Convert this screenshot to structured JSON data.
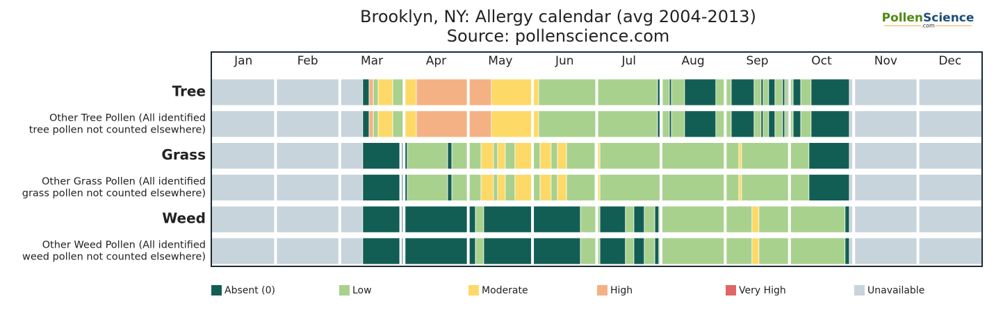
{
  "chart_data": {
    "type": "calendar",
    "title": [
      "Brooklyn, NY: Allergy calendar (avg 2004-2013)",
      "Source: pollenscience.com"
    ],
    "logo": [
      "Pollen",
      "Science",
      ".com"
    ],
    "categories": [
      "Jan",
      "Feb",
      "Mar",
      "Apr",
      "May",
      "Jun",
      "Jul",
      "Aug",
      "Sep",
      "Oct",
      "Nov",
      "Dec"
    ],
    "xlim": [
      0,
      365
    ],
    "levels": [
      {
        "name": "Absent (0)",
        "color": "#135e54"
      },
      {
        "name": "Low",
        "color": "#a9d18e"
      },
      {
        "name": "Moderate",
        "color": "#fdd967"
      },
      {
        "name": "High",
        "color": "#f4b183"
      },
      {
        "name": "Very High",
        "color": "#e06666"
      },
      {
        "name": "Unavailable",
        "color": "#c8d4dc"
      }
    ],
    "rows": [
      {
        "label": [
          "Tree"
        ],
        "bold": true,
        "segments": [
          [
            0,
            71.7,
            5
          ],
          [
            71.7,
            74.7,
            0
          ],
          [
            74.7,
            76.7,
            3
          ],
          [
            76.7,
            79.0,
            1
          ],
          [
            79.0,
            85.9,
            2
          ],
          [
            85.9,
            90.8,
            1
          ],
          [
            90.8,
            97.1,
            2
          ],
          [
            97.1,
            132.6,
            3
          ],
          [
            132.6,
            155.0,
            2
          ],
          [
            155.0,
            211.3,
            1
          ],
          [
            211.3,
            213.6,
            0
          ],
          [
            213.6,
            216.9,
            1
          ],
          [
            216.9,
            217.9,
            0
          ],
          [
            217.9,
            224.1,
            1
          ],
          [
            224.1,
            238.9,
            0
          ],
          [
            238.9,
            246.2,
            1
          ],
          [
            246.2,
            257.0,
            0
          ],
          [
            257.0,
            260.3,
            1
          ],
          [
            260.3,
            261.3,
            0
          ],
          [
            261.3,
            263.9,
            1
          ],
          [
            263.9,
            266.9,
            0
          ],
          [
            266.9,
            270.5,
            1
          ],
          [
            270.5,
            271.5,
            0
          ],
          [
            271.5,
            272.8,
            1
          ],
          [
            272.8,
            273.8,
            0
          ],
          [
            273.8,
            275.5,
            1
          ],
          [
            275.5,
            279.1,
            0
          ],
          [
            279.1,
            284.0,
            1
          ],
          [
            284.0,
            302.1,
            0
          ],
          [
            302.1,
            365,
            5
          ]
        ]
      },
      {
        "label": [
          "Other Tree Pollen (All identified",
          "tree pollen not counted elsewhere)"
        ],
        "bold": false,
        "segments": [
          [
            0,
            71.7,
            5
          ],
          [
            71.7,
            74.7,
            0
          ],
          [
            74.7,
            76.7,
            3
          ],
          [
            76.7,
            79.0,
            1
          ],
          [
            79.0,
            85.9,
            2
          ],
          [
            85.9,
            90.8,
            1
          ],
          [
            90.8,
            97.1,
            2
          ],
          [
            97.1,
            132.6,
            3
          ],
          [
            132.6,
            155.0,
            2
          ],
          [
            155.0,
            211.3,
            1
          ],
          [
            211.3,
            213.6,
            0
          ],
          [
            213.6,
            216.9,
            1
          ],
          [
            216.9,
            217.9,
            0
          ],
          [
            217.9,
            224.1,
            1
          ],
          [
            224.1,
            238.9,
            0
          ],
          [
            238.9,
            246.2,
            1
          ],
          [
            246.2,
            257.0,
            0
          ],
          [
            257.0,
            260.3,
            1
          ],
          [
            260.3,
            261.3,
            0
          ],
          [
            261.3,
            263.9,
            1
          ],
          [
            263.9,
            266.9,
            0
          ],
          [
            266.9,
            270.5,
            1
          ],
          [
            270.5,
            271.5,
            0
          ],
          [
            271.5,
            272.8,
            1
          ],
          [
            272.8,
            273.8,
            0
          ],
          [
            273.8,
            275.5,
            1
          ],
          [
            275.5,
            279.1,
            0
          ],
          [
            279.1,
            284.0,
            1
          ],
          [
            284.0,
            302.1,
            0
          ],
          [
            302.1,
            365,
            5
          ]
        ]
      },
      {
        "label": [
          "Grass"
        ],
        "bold": true,
        "segments": [
          [
            0,
            71.7,
            5
          ],
          [
            71.7,
            89.2,
            0
          ],
          [
            90.2,
            92.8,
            0
          ],
          [
            92.8,
            111.9,
            1
          ],
          [
            111.9,
            113.9,
            0
          ],
          [
            113.9,
            127.7,
            1
          ],
          [
            127.7,
            133.6,
            2
          ],
          [
            133.6,
            135.6,
            1
          ],
          [
            135.6,
            139.2,
            2
          ],
          [
            139.2,
            143.8,
            1
          ],
          [
            143.8,
            151.7,
            2
          ],
          [
            151.7,
            155.7,
            1
          ],
          [
            155.7,
            160.9,
            2
          ],
          [
            160.9,
            163.9,
            1
          ],
          [
            163.9,
            168.2,
            2
          ],
          [
            168.2,
            181.7,
            1
          ],
          [
            181.7,
            184.0,
            2
          ],
          [
            184.0,
            249.8,
            1
          ],
          [
            249.8,
            251.1,
            2
          ],
          [
            251.1,
            283.0,
            1
          ],
          [
            283.0,
            302.1,
            0
          ],
          [
            302.1,
            365,
            5
          ]
        ]
      },
      {
        "label": [
          "Other Grass Pollen (All identified",
          "grass pollen not counted elsewhere)"
        ],
        "bold": false,
        "segments": [
          [
            0,
            71.7,
            5
          ],
          [
            71.7,
            89.2,
            0
          ],
          [
            90.2,
            92.8,
            0
          ],
          [
            92.8,
            111.9,
            1
          ],
          [
            111.9,
            113.9,
            0
          ],
          [
            113.9,
            127.7,
            1
          ],
          [
            127.7,
            133.6,
            2
          ],
          [
            133.6,
            135.6,
            1
          ],
          [
            135.6,
            139.2,
            2
          ],
          [
            139.2,
            143.8,
            1
          ],
          [
            143.8,
            151.7,
            2
          ],
          [
            151.7,
            155.7,
            1
          ],
          [
            155.7,
            160.9,
            2
          ],
          [
            160.9,
            163.9,
            1
          ],
          [
            163.9,
            168.2,
            2
          ],
          [
            168.2,
            181.7,
            1
          ],
          [
            181.7,
            184.0,
            2
          ],
          [
            184.0,
            249.8,
            1
          ],
          [
            249.8,
            251.1,
            2
          ],
          [
            251.1,
            283.0,
            1
          ],
          [
            283.0,
            302.1,
            0
          ],
          [
            302.1,
            365,
            5
          ]
        ]
      },
      {
        "label": [
          "Weed"
        ],
        "bold": true,
        "segments": [
          [
            0,
            71.7,
            5
          ],
          [
            71.7,
            89.2,
            0
          ],
          [
            90.2,
            125.1,
            0
          ],
          [
            125.1,
            129.0,
            1
          ],
          [
            129.0,
            174.8,
            0
          ],
          [
            174.8,
            184.0,
            1
          ],
          [
            184.0,
            196.1,
            0
          ],
          [
            196.1,
            200.1,
            1
          ],
          [
            200.1,
            205.0,
            0
          ],
          [
            205.0,
            210.0,
            1
          ],
          [
            210.0,
            211.9,
            0
          ],
          [
            211.9,
            256.0,
            1
          ],
          [
            256.0,
            259.3,
            2
          ],
          [
            259.3,
            300.1,
            1
          ],
          [
            300.1,
            302.1,
            0
          ],
          [
            302.1,
            365,
            5
          ]
        ]
      },
      {
        "label": [
          "Other Weed Pollen (All identified",
          "weed pollen not counted elsewhere)"
        ],
        "bold": false,
        "segments": [
          [
            0,
            71.7,
            5
          ],
          [
            71.7,
            89.2,
            0
          ],
          [
            90.2,
            125.1,
            0
          ],
          [
            125.1,
            129.0,
            1
          ],
          [
            129.0,
            174.8,
            0
          ],
          [
            174.8,
            184.0,
            1
          ],
          [
            184.0,
            196.1,
            0
          ],
          [
            196.1,
            200.1,
            1
          ],
          [
            200.1,
            205.0,
            0
          ],
          [
            205.0,
            210.0,
            1
          ],
          [
            210.0,
            211.9,
            0
          ],
          [
            211.9,
            256.0,
            1
          ],
          [
            256.0,
            259.3,
            2
          ],
          [
            259.3,
            300.1,
            1
          ],
          [
            300.1,
            302.1,
            0
          ],
          [
            302.1,
            365,
            5
          ]
        ]
      }
    ]
  }
}
